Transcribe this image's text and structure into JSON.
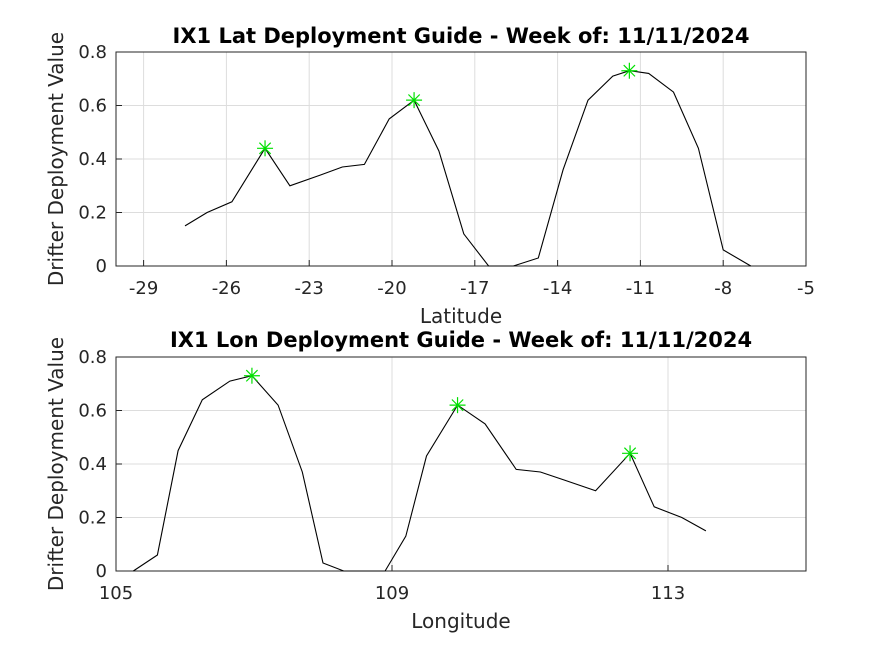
{
  "chart_data": [
    {
      "type": "line",
      "title": "IX1 Lat Deployment Guide - Week of: 11/11/2024",
      "xlabel": "Latitude",
      "ylabel": "Drifter Deployment Value",
      "xlim": [
        -30,
        -5
      ],
      "ylim": [
        0,
        0.8
      ],
      "xticks": [
        -29,
        -26,
        -23,
        -20,
        -17,
        -14,
        -11,
        -8,
        -5
      ],
      "yticks": [
        0,
        0.2,
        0.4,
        0.6,
        0.8
      ],
      "grid": true,
      "series": [
        {
          "x": [
            -27.5,
            -26.7,
            -25.8,
            -24.6,
            -23.7,
            -22.6,
            -21.8,
            -21.0,
            -20.1,
            -19.2,
            -18.3,
            -17.4,
            -16.5,
            -15.6,
            -14.7,
            -13.8,
            -12.9,
            -12.0,
            -11.4,
            -10.7,
            -9.8,
            -8.9,
            -8.0,
            -7.0
          ],
          "y": [
            0.15,
            0.2,
            0.24,
            0.44,
            0.3,
            0.34,
            0.37,
            0.38,
            0.55,
            0.62,
            0.43,
            0.12,
            0.0,
            0.0,
            0.03,
            0.36,
            0.62,
            0.71,
            0.73,
            0.72,
            0.65,
            0.44,
            0.06,
            0.0
          ]
        }
      ],
      "markers": [
        {
          "x": -24.6,
          "y": 0.44
        },
        {
          "x": -19.2,
          "y": 0.62
        },
        {
          "x": -11.4,
          "y": 0.73
        }
      ],
      "marker_color": "#00e000"
    },
    {
      "type": "line",
      "title": "IX1 Lon Deployment Guide - Week of: 11/11/2024",
      "xlabel": "Longitude",
      "ylabel": "Drifter Deployment Value",
      "xlim": [
        105,
        115
      ],
      "ylim": [
        0,
        0.8
      ],
      "xticks": [
        105,
        109,
        113
      ],
      "yticks": [
        0,
        0.2,
        0.4,
        0.6,
        0.8
      ],
      "grid": true,
      "series": [
        {
          "x": [
            105.25,
            105.6,
            105.9,
            106.25,
            106.65,
            106.97,
            107.35,
            107.7,
            108.0,
            108.3,
            108.65,
            108.9,
            109.2,
            109.5,
            109.95,
            110.35,
            110.8,
            111.15,
            111.5,
            111.95,
            112.45,
            112.8,
            113.2,
            113.55
          ],
          "y": [
            0.0,
            0.06,
            0.45,
            0.64,
            0.71,
            0.73,
            0.62,
            0.37,
            0.03,
            0.0,
            0.0,
            0.0,
            0.13,
            0.43,
            0.62,
            0.55,
            0.38,
            0.37,
            0.34,
            0.3,
            0.44,
            0.24,
            0.2,
            0.15
          ]
        }
      ],
      "markers": [
        {
          "x": 106.97,
          "y": 0.73
        },
        {
          "x": 109.95,
          "y": 0.62
        },
        {
          "x": 112.45,
          "y": 0.44
        }
      ],
      "marker_color": "#00e000"
    }
  ]
}
